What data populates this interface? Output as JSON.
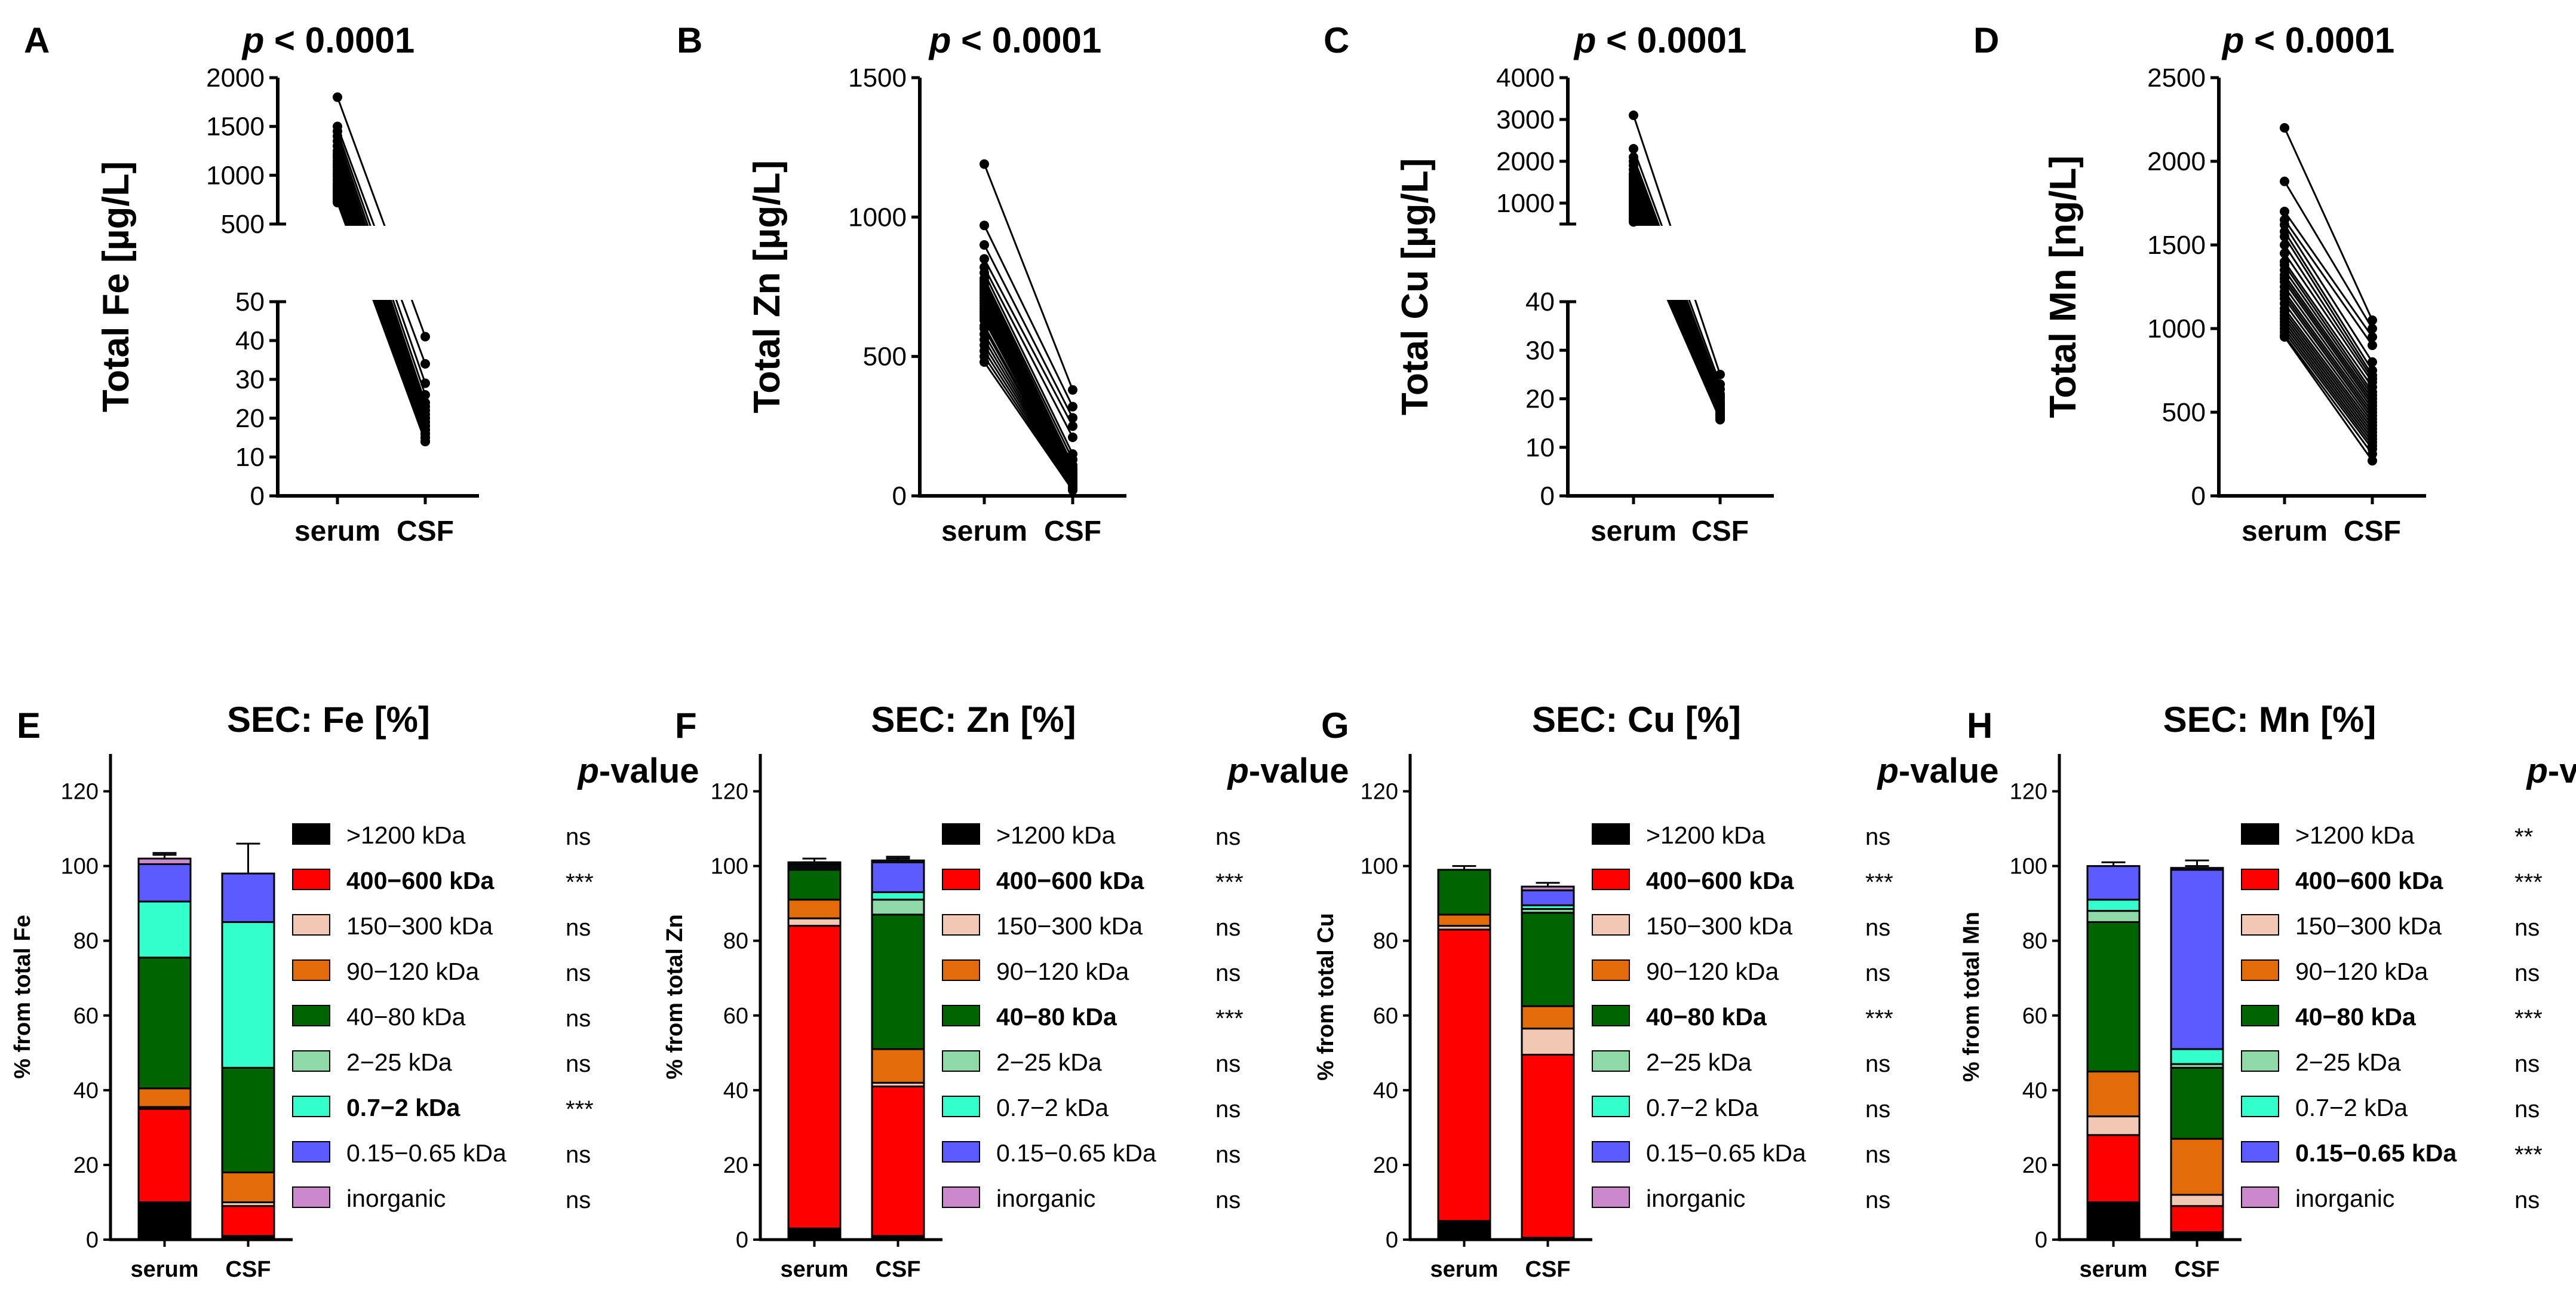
{
  "chart_data": [
    {
      "panel": "A",
      "type": "scatter",
      "subtype": "paired",
      "title": "p < 0.0001",
      "title_p": "p",
      "title_rest": " < 0.0001",
      "ylabel": "Total Fe [µg/L]",
      "categories": [
        "serum",
        "CSF"
      ],
      "broken_axis": true,
      "upper_range": [
        500,
        2000
      ],
      "upper_ticks": [
        500,
        1000,
        1500,
        2000
      ],
      "lower_range": [
        0,
        50
      ],
      "lower_ticks": [
        0,
        10,
        20,
        30,
        40,
        50
      ],
      "serum": [
        1800,
        1500,
        1450,
        1400,
        1350,
        1300,
        1250,
        1220,
        1200,
        1180,
        1150,
        1120,
        1100,
        1080,
        1050,
        1020,
        1000,
        980,
        950,
        920,
        900,
        880,
        860,
        840,
        820,
        800,
        780,
        760,
        740,
        720
      ],
      "csf": [
        41,
        34,
        29,
        26,
        24,
        23,
        22,
        21,
        20,
        20,
        19,
        19,
        18,
        18,
        18,
        17,
        17,
        17,
        16,
        16,
        16,
        16,
        15,
        15,
        15,
        15,
        14,
        14,
        14,
        14
      ]
    },
    {
      "panel": "B",
      "type": "scatter",
      "subtype": "paired",
      "title": "p < 0.0001",
      "title_p": "p",
      "title_rest": " < 0.0001",
      "ylabel": "Total Zn [µg/L]",
      "categories": [
        "serum",
        "CSF"
      ],
      "ylim": [
        0,
        1500
      ],
      "ticks": [
        0,
        500,
        1000,
        1500
      ],
      "serum": [
        1190,
        970,
        900,
        850,
        820,
        800,
        780,
        770,
        760,
        750,
        740,
        730,
        720,
        710,
        700,
        690,
        680,
        670,
        660,
        650,
        640,
        630,
        610,
        600,
        580,
        560,
        540,
        520,
        500,
        480
      ],
      "csf": [
        380,
        320,
        280,
        250,
        210,
        150,
        130,
        110,
        100,
        95,
        90,
        85,
        80,
        75,
        70,
        65,
        60,
        55,
        50,
        45,
        42,
        40,
        38,
        35,
        32,
        30,
        28,
        25,
        22,
        20
      ]
    },
    {
      "panel": "C",
      "type": "scatter",
      "subtype": "paired",
      "title": "p < 0.0001",
      "title_p": "p",
      "title_rest": " < 0.0001",
      "ylabel": "Total Cu [µg/L]",
      "categories": [
        "serum",
        "CSF"
      ],
      "broken_axis": true,
      "upper_range": [
        500,
        4000
      ],
      "upper_ticks": [
        1000,
        2000,
        3000,
        4000
      ],
      "lower_range": [
        0,
        40
      ],
      "lower_ticks": [
        0,
        10,
        20,
        30,
        40
      ],
      "serum": [
        3100,
        2300,
        2100,
        2000,
        1900,
        1800,
        1700,
        1650,
        1600,
        1550,
        1500,
        1450,
        1400,
        1350,
        1300,
        1250,
        1200,
        1150,
        1100,
        1050,
        1000,
        950,
        900,
        850,
        800,
        750,
        700,
        650,
        600,
        550
      ],
      "csf": [
        25,
        23,
        22,
        21,
        20.5,
        20,
        19.5,
        19,
        19,
        18.5,
        18.5,
        18,
        18,
        17.8,
        17.5,
        17.5,
        17.3,
        17,
        17,
        16.8,
        16.5,
        16.5,
        16.3,
        16.2,
        16,
        16,
        16,
        15.8,
        15.8,
        15.7
      ]
    },
    {
      "panel": "D",
      "type": "scatter",
      "subtype": "paired",
      "title": "p < 0.0001",
      "title_p": "p",
      "title_rest": " < 0.0001",
      "ylabel": "Total Mn [ng/L]",
      "categories": [
        "serum",
        "CSF"
      ],
      "ylim": [
        0,
        2500
      ],
      "ticks": [
        0,
        500,
        1000,
        1500,
        2000,
        2500
      ],
      "serum": [
        2200,
        1880,
        1700,
        1650,
        1620,
        1580,
        1550,
        1500,
        1450,
        1400,
        1380,
        1350,
        1320,
        1300,
        1280,
        1250,
        1220,
        1200,
        1180,
        1150,
        1120,
        1100,
        1080,
        1060,
        1040,
        1020,
        1000,
        980,
        960,
        950
      ],
      "csf": [
        1050,
        1000,
        950,
        900,
        800,
        750,
        720,
        700,
        680,
        650,
        620,
        600,
        580,
        560,
        540,
        520,
        500,
        480,
        460,
        440,
        420,
        400,
        380,
        360,
        340,
        320,
        300,
        280,
        250,
        210
      ]
    },
    {
      "panel": "E",
      "type": "bar",
      "stacked": true,
      "title": "SEC: Fe [%]",
      "ylabel": "% from  total Fe",
      "categories": [
        "serum",
        "CSF"
      ],
      "ylim": [
        0,
        130
      ],
      "ticks": [
        0,
        20,
        40,
        60,
        80,
        100,
        120
      ],
      "series": [
        {
          "name": ">1200 kDa",
          "color": "#000000",
          "values": [
            10,
            1
          ],
          "err": [
            1,
            1
          ],
          "sig": "ns",
          "bold": false
        },
        {
          "name": "400−600 kDa",
          "color": "#ff0000",
          "values": [
            25,
            8
          ],
          "err": [
            2,
            2
          ],
          "sig": "***",
          "bold": true
        },
        {
          "name": "150−300 kDa",
          "color": "#f2c8b4",
          "values": [
            0.5,
            1
          ],
          "err": [
            0,
            0
          ],
          "sig": "ns",
          "bold": false
        },
        {
          "name": "90−120 kDa",
          "color": "#e26b0a",
          "values": [
            5,
            8
          ],
          "err": [
            1,
            1
          ],
          "sig": "ns",
          "bold": false
        },
        {
          "name": "40−80 kDa",
          "color": "#006400",
          "values": [
            35,
            28
          ],
          "err": [
            3,
            3
          ],
          "sig": "ns",
          "bold": false
        },
        {
          "name": "2−25 kDa",
          "color": "#90d9a8",
          "values": [
            0,
            0
          ],
          "err": [
            0,
            0
          ],
          "sig": "ns",
          "bold": false
        },
        {
          "name": "0.7−2 kDa",
          "color": "#33ffcc",
          "values": [
            15,
            39
          ],
          "err": [
            3,
            4
          ],
          "sig": "***",
          "bold": true
        },
        {
          "name": "0.15−0.65 kDa",
          "color": "#5b5bff",
          "values": [
            10,
            13
          ],
          "err": [
            3,
            8
          ],
          "sig": "ns",
          "bold": false
        },
        {
          "name": "inorganic",
          "color": "#cc88cc",
          "values": [
            1.5,
            0
          ],
          "err": [
            1,
            0
          ],
          "sig": "ns",
          "bold": false
        }
      ]
    },
    {
      "panel": "F",
      "type": "bar",
      "stacked": true,
      "title": "SEC: Zn [%]",
      "ylabel": "% from  total Zn",
      "categories": [
        "serum",
        "CSF"
      ],
      "ylim": [
        0,
        130
      ],
      "ticks": [
        0,
        20,
        40,
        60,
        80,
        100,
        120
      ],
      "series": [
        {
          "name": ">1200 kDa",
          "color": "#000000",
          "values": [
            3,
            1
          ],
          "err": [
            1,
            0
          ],
          "sig": "ns",
          "bold": false
        },
        {
          "name": "400−600 kDa",
          "color": "#ff0000",
          "values": [
            81,
            40
          ],
          "err": [
            1,
            2
          ],
          "sig": "***",
          "bold": true
        },
        {
          "name": "150−300 kDa",
          "color": "#f2c8b4",
          "values": [
            2,
            1
          ],
          "err": [
            1,
            1
          ],
          "sig": "ns",
          "bold": false
        },
        {
          "name": "90−120 kDa",
          "color": "#e26b0a",
          "values": [
            5,
            9
          ],
          "err": [
            2,
            3
          ],
          "sig": "ns",
          "bold": false
        },
        {
          "name": "40−80 kDa",
          "color": "#006400",
          "values": [
            8,
            36
          ],
          "err": [
            2,
            3
          ],
          "sig": "***",
          "bold": true
        },
        {
          "name": "2−25 kDa",
          "color": "#90d9a8",
          "values": [
            0.5,
            4
          ],
          "err": [
            0,
            2
          ],
          "sig": "ns",
          "bold": false
        },
        {
          "name": "0.7−2 kDa",
          "color": "#33ffcc",
          "values": [
            0.5,
            2
          ],
          "err": [
            0,
            1
          ],
          "sig": "ns",
          "bold": false
        },
        {
          "name": "0.15−0.65 kDa",
          "color": "#5b5bff",
          "values": [
            0.5,
            8
          ],
          "err": [
            0,
            1
          ],
          "sig": "ns",
          "bold": false
        },
        {
          "name": "inorganic",
          "color": "#cc88cc",
          "values": [
            0.5,
            0.5
          ],
          "err": [
            1,
            1
          ],
          "sig": "ns",
          "bold": false
        }
      ]
    },
    {
      "panel": "G",
      "type": "bar",
      "stacked": true,
      "title": "SEC: Cu [%]",
      "ylabel": "% from  total Cu",
      "categories": [
        "serum",
        "CSF"
      ],
      "ylim": [
        0,
        130
      ],
      "ticks": [
        0,
        20,
        40,
        60,
        80,
        100,
        120
      ],
      "series": [
        {
          "name": ">1200 kDa",
          "color": "#000000",
          "values": [
            5,
            0.5
          ],
          "err": [
            1,
            0
          ],
          "sig": "ns",
          "bold": false
        },
        {
          "name": "400−600 kDa",
          "color": "#ff0000",
          "values": [
            78,
            49
          ],
          "err": [
            1,
            2
          ],
          "sig": "***",
          "bold": true
        },
        {
          "name": "150−300 kDa",
          "color": "#f2c8b4",
          "values": [
            1,
            7
          ],
          "err": [
            1,
            3
          ],
          "sig": "ns",
          "bold": false
        },
        {
          "name": "90−120 kDa",
          "color": "#e26b0a",
          "values": [
            3,
            6
          ],
          "err": [
            3,
            2
          ],
          "sig": "ns",
          "bold": false
        },
        {
          "name": "40−80 kDa",
          "color": "#006400",
          "values": [
            12,
            25
          ],
          "err": [
            1,
            2
          ],
          "sig": "***",
          "bold": true
        },
        {
          "name": "2−25 kDa",
          "color": "#90d9a8",
          "values": [
            0,
            1
          ],
          "err": [
            0,
            0
          ],
          "sig": "ns",
          "bold": false
        },
        {
          "name": "0.7−2 kDa",
          "color": "#33ffcc",
          "values": [
            0,
            1
          ],
          "err": [
            0,
            0
          ],
          "sig": "ns",
          "bold": false
        },
        {
          "name": "0.15−0.65 kDa",
          "color": "#5b5bff",
          "values": [
            0,
            4
          ],
          "err": [
            0,
            1
          ],
          "sig": "ns",
          "bold": false
        },
        {
          "name": "inorganic",
          "color": "#cc88cc",
          "values": [
            0,
            1
          ],
          "err": [
            0,
            1
          ],
          "sig": "ns",
          "bold": false
        }
      ]
    },
    {
      "panel": "H",
      "type": "bar",
      "stacked": true,
      "title": "SEC: Mn [%]",
      "ylabel": "% from  total Mn",
      "categories": [
        "serum",
        "CSF"
      ],
      "ylim": [
        0,
        130
      ],
      "ticks": [
        0,
        20,
        40,
        60,
        80,
        100,
        120
      ],
      "series": [
        {
          "name": ">1200 kDa",
          "color": "#000000",
          "values": [
            10,
            2
          ],
          "err": [
            1,
            1
          ],
          "sig": "**",
          "bold": false
        },
        {
          "name": "400−600 kDa",
          "color": "#ff0000",
          "values": [
            18,
            7
          ],
          "err": [
            1,
            1
          ],
          "sig": "***",
          "bold": true
        },
        {
          "name": "150−300 kDa",
          "color": "#f2c8b4",
          "values": [
            5,
            3
          ],
          "err": [
            1,
            1
          ],
          "sig": "ns",
          "bold": false
        },
        {
          "name": "90−120 kDa",
          "color": "#e26b0a",
          "values": [
            12,
            15
          ],
          "err": [
            1,
            3
          ],
          "sig": "ns",
          "bold": false
        },
        {
          "name": "40−80 kDa",
          "color": "#006400",
          "values": [
            40,
            19
          ],
          "err": [
            1,
            3
          ],
          "sig": "***",
          "bold": true
        },
        {
          "name": "2−25 kDa",
          "color": "#90d9a8",
          "values": [
            3,
            1
          ],
          "err": [
            1,
            1
          ],
          "sig": "ns",
          "bold": false
        },
        {
          "name": "0.7−2 kDa",
          "color": "#33ffcc",
          "values": [
            3,
            4
          ],
          "err": [
            1,
            1
          ],
          "sig": "ns",
          "bold": false
        },
        {
          "name": "0.15−0.65 kDa",
          "color": "#5b5bff",
          "values": [
            9,
            48
          ],
          "err": [
            1,
            1
          ],
          "sig": "***",
          "bold": true
        },
        {
          "name": "inorganic",
          "color": "#cc88cc",
          "values": [
            0,
            0.5
          ],
          "err": [
            0,
            2
          ],
          "sig": "ns",
          "bold": false
        }
      ]
    }
  ],
  "pvalue_header": {
    "p": "p",
    "rest": "-value"
  },
  "colors": {
    "points": "#000000",
    "axis": "#000000"
  }
}
